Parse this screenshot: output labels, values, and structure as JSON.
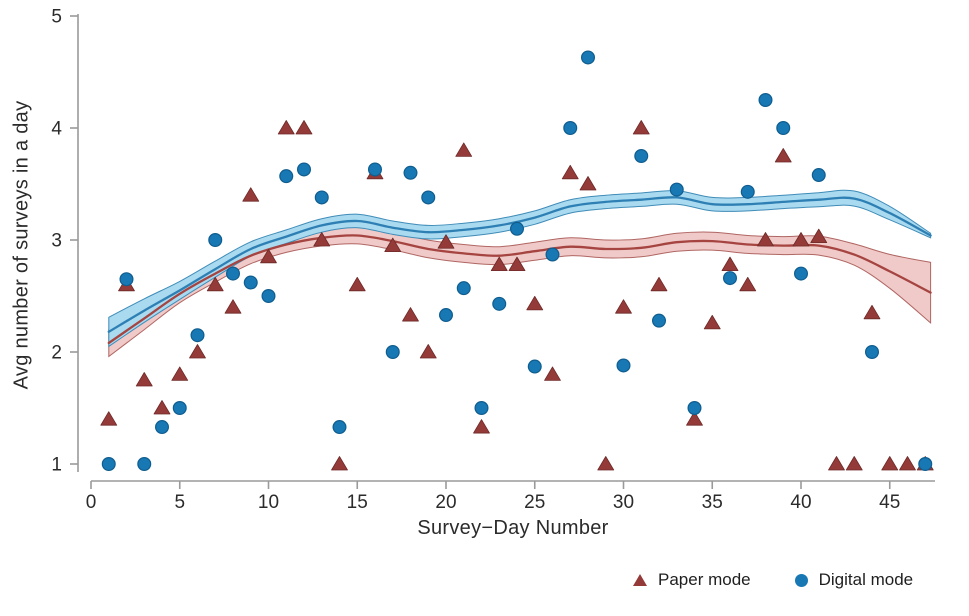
{
  "figure": {
    "y_axis": {
      "title": "Avg number of surveys in a day",
      "tick_labels": [
        "1",
        "2",
        "3",
        "4",
        "5"
      ],
      "range": [
        1,
        5
      ]
    },
    "x_axis": {
      "title": "Survey−Day Number",
      "tick_labels": [
        "0",
        "5",
        "10",
        "15",
        "20",
        "25",
        "30",
        "35",
        "40",
        "45"
      ],
      "range": [
        0,
        47.5
      ]
    },
    "legend": [
      {
        "label": "Paper mode",
        "marker": "triangle",
        "color": "#943a38"
      },
      {
        "label": "Digital mode",
        "marker": "circle",
        "color": "#1878b4"
      }
    ]
  },
  "chart_data": {
    "type": "scatter",
    "title": "",
    "xlabel": "Survey−Day Number",
    "ylabel": "Avg number of surveys in a day",
    "xlim": [
      0,
      48
    ],
    "ylim": [
      1,
      5
    ],
    "x_ticks": [
      0,
      5,
      10,
      15,
      20,
      25,
      30,
      35,
      40,
      45
    ],
    "y_ticks": [
      1,
      2,
      3,
      4,
      5
    ],
    "grid": false,
    "legend_position": "bottom-right",
    "series": [
      {
        "name": "Paper mode",
        "marker": "triangle",
        "color": "#943a38",
        "points": [
          [
            1,
            1.4
          ],
          [
            2,
            2.6
          ],
          [
            3,
            1.75
          ],
          [
            4,
            1.5
          ],
          [
            5,
            1.8
          ],
          [
            6,
            2.0
          ],
          [
            7,
            2.6
          ],
          [
            8,
            2.4
          ],
          [
            9,
            3.4
          ],
          [
            10,
            2.85
          ],
          [
            11,
            4.0
          ],
          [
            12,
            4.0
          ],
          [
            13,
            3.0
          ],
          [
            14,
            1.0
          ],
          [
            15,
            2.6
          ],
          [
            16,
            3.6
          ],
          [
            17,
            2.95
          ],
          [
            18,
            2.33
          ],
          [
            19,
            2.0
          ],
          [
            20,
            2.98
          ],
          [
            21,
            3.8
          ],
          [
            22,
            1.33
          ],
          [
            23,
            2.78
          ],
          [
            24,
            2.78
          ],
          [
            25,
            2.43
          ],
          [
            26,
            1.8
          ],
          [
            27,
            3.6
          ],
          [
            28,
            3.5
          ],
          [
            29,
            1.0
          ],
          [
            30,
            2.4
          ],
          [
            31,
            4.0
          ],
          [
            32,
            2.6
          ],
          [
            34,
            1.4
          ],
          [
            35,
            2.26
          ],
          [
            36,
            2.78
          ],
          [
            37,
            2.6
          ],
          [
            38,
            3.0
          ],
          [
            39,
            3.75
          ],
          [
            40,
            3.0
          ],
          [
            41,
            3.03
          ],
          [
            42,
            1.0
          ],
          [
            43,
            1.0
          ],
          [
            44,
            2.35
          ],
          [
            45,
            1.0
          ],
          [
            46,
            1.0
          ],
          [
            47,
            1.0
          ]
        ]
      },
      {
        "name": "Digital mode",
        "marker": "circle",
        "color": "#1878b4",
        "points": [
          [
            1,
            1.0
          ],
          [
            2,
            2.65
          ],
          [
            3,
            1.0
          ],
          [
            4,
            1.33
          ],
          [
            5,
            1.5
          ],
          [
            6,
            2.15
          ],
          [
            7,
            3.0
          ],
          [
            8,
            2.7
          ],
          [
            9,
            2.62
          ],
          [
            10,
            2.5
          ],
          [
            11,
            3.57
          ],
          [
            12,
            3.63
          ],
          [
            13,
            3.38
          ],
          [
            14,
            1.33
          ],
          [
            16,
            3.63
          ],
          [
            17,
            2.0
          ],
          [
            18,
            3.6
          ],
          [
            19,
            3.38
          ],
          [
            20,
            2.33
          ],
          [
            21,
            2.57
          ],
          [
            22,
            1.5
          ],
          [
            23,
            2.43
          ],
          [
            24,
            3.1
          ],
          [
            25,
            1.87
          ],
          [
            26,
            2.87
          ],
          [
            27,
            4.0
          ],
          [
            28,
            4.63
          ],
          [
            30,
            1.88
          ],
          [
            31,
            3.75
          ],
          [
            32,
            2.28
          ],
          [
            33,
            3.45
          ],
          [
            34,
            1.5
          ],
          [
            36,
            2.66
          ],
          [
            37,
            3.43
          ],
          [
            38,
            4.25
          ],
          [
            39,
            4.0
          ],
          [
            40,
            2.7
          ],
          [
            41,
            3.58
          ],
          [
            44,
            2.0
          ],
          [
            47,
            1.0
          ]
        ]
      }
    ],
    "smoothed": [
      {
        "name": "Paper mode",
        "line_color": "#a54441",
        "band_fill": "#f0cac8",
        "band_edge": "#b06663",
        "line": [
          [
            1,
            2.08
          ],
          [
            3,
            2.3
          ],
          [
            5,
            2.52
          ],
          [
            7,
            2.7
          ],
          [
            9,
            2.86
          ],
          [
            11,
            2.96
          ],
          [
            13,
            3.02
          ],
          [
            15,
            3.04
          ],
          [
            17,
            2.99
          ],
          [
            19,
            2.92
          ],
          [
            21,
            2.88
          ],
          [
            23,
            2.86
          ],
          [
            25,
            2.9
          ],
          [
            27,
            2.94
          ],
          [
            29,
            2.92
          ],
          [
            31,
            2.93
          ],
          [
            33,
            2.98
          ],
          [
            35,
            2.99
          ],
          [
            37,
            2.96
          ],
          [
            39,
            2.95
          ],
          [
            41,
            2.95
          ],
          [
            43,
            2.87
          ],
          [
            45,
            2.72
          ],
          [
            47.3,
            2.53
          ]
        ],
        "half_width": [
          [
            1,
            0.12
          ],
          [
            5,
            0.08
          ],
          [
            10,
            0.07
          ],
          [
            20,
            0.08
          ],
          [
            30,
            0.08
          ],
          [
            40,
            0.08
          ],
          [
            44,
            0.1
          ],
          [
            47.3,
            0.27
          ]
        ]
      },
      {
        "name": "Digital mode",
        "line_color": "#2e80b4",
        "band_fill": "#aadaf0",
        "band_edge": "#3f8cb8",
        "line": [
          [
            1,
            2.18
          ],
          [
            3,
            2.37
          ],
          [
            5,
            2.55
          ],
          [
            7,
            2.74
          ],
          [
            9,
            2.92
          ],
          [
            11,
            3.03
          ],
          [
            13,
            3.13
          ],
          [
            15,
            3.17
          ],
          [
            17,
            3.11
          ],
          [
            19,
            3.07
          ],
          [
            21,
            3.09
          ],
          [
            23,
            3.13
          ],
          [
            25,
            3.2
          ],
          [
            27,
            3.3
          ],
          [
            29,
            3.34
          ],
          [
            31,
            3.36
          ],
          [
            33,
            3.38
          ],
          [
            35,
            3.32
          ],
          [
            37,
            3.32
          ],
          [
            39,
            3.34
          ],
          [
            41,
            3.36
          ],
          [
            43,
            3.37
          ],
          [
            45,
            3.24
          ],
          [
            47.3,
            3.04
          ]
        ],
        "half_width": [
          [
            1,
            0.13
          ],
          [
            5,
            0.08
          ],
          [
            10,
            0.06
          ],
          [
            20,
            0.06
          ],
          [
            30,
            0.06
          ],
          [
            40,
            0.06
          ],
          [
            44,
            0.07
          ],
          [
            46,
            0.05
          ],
          [
            47.3,
            0.02
          ]
        ]
      }
    ]
  }
}
